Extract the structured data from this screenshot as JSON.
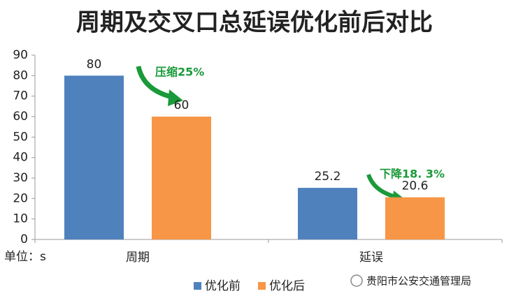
{
  "chart_data": {
    "type": "bar",
    "title": "周期及交叉口总延误优化前后对比",
    "categories": [
      "周期",
      "延误"
    ],
    "series": [
      {
        "name": "优化前",
        "color": "#4f81bd",
        "values": [
          80,
          25.2
        ]
      },
      {
        "name": "优化后",
        "color": "#f79646",
        "values": [
          60,
          20.6
        ]
      }
    ],
    "ylim": [
      0,
      90
    ],
    "yticks": [
      0,
      10,
      20,
      30,
      40,
      50,
      60,
      70,
      80,
      90
    ],
    "grid": false,
    "legend": "bottom",
    "annotations": [
      "压缩25%",
      "下降18. 3%"
    ],
    "unit_label": "单位：s",
    "watermark": "贵阳市公安交通管理局"
  }
}
